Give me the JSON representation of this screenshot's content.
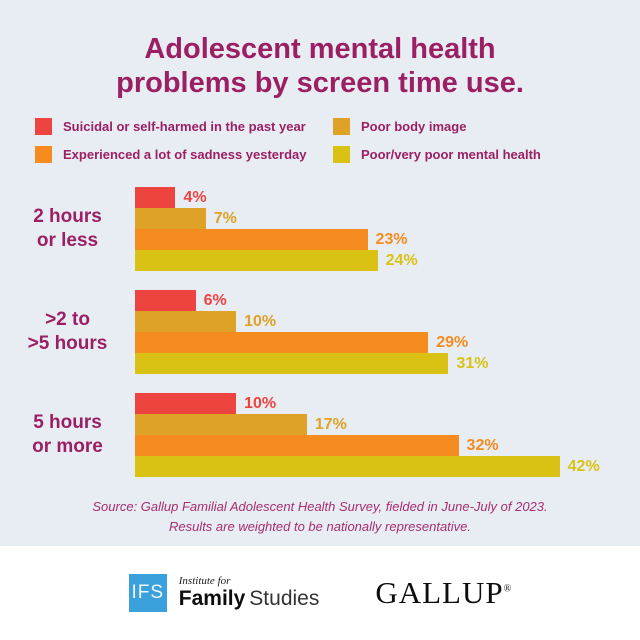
{
  "title": {
    "line1": "Adolescent mental health",
    "line2": "problems by screen time use."
  },
  "colors": {
    "background": "#e8edf4",
    "footer_background": "#ffffff",
    "heading_text": "#9b1f63",
    "source_text": "#a72d70",
    "red": "#ee4440",
    "orange": "#f68b1f",
    "amber": "#dda226",
    "yellow": "#d9c214",
    "ifs_blue": "#3ba1dd"
  },
  "legend": [
    {
      "key": "suicidal",
      "label": "Suicidal or self-harmed in the past year",
      "color": "#ee4440"
    },
    {
      "key": "sadness",
      "label": "Experienced a lot of sadness yesterday",
      "color": "#f68b1f"
    },
    {
      "key": "poor-body-image",
      "label": "Poor body image",
      "color": "#dda226"
    },
    {
      "key": "poor-mental-health",
      "label": "Poor/very poor mental health",
      "color": "#d9c214"
    }
  ],
  "chart_data": {
    "type": "bar",
    "orientation": "horizontal",
    "value_unit": "%",
    "axis_max": 45,
    "grid": false,
    "legend_position": "top",
    "categories": [
      "2 hours or less",
      ">2 to >5 hours",
      "5 hours or more"
    ],
    "series": [
      {
        "name": "Suicidal or self-harmed in the past year",
        "color": "#ee4440",
        "values": [
          4,
          6,
          10
        ]
      },
      {
        "name": "Poor body image",
        "color": "#dda226",
        "values": [
          7,
          10,
          17
        ]
      },
      {
        "name": "Experienced a lot of sadness yesterday",
        "color": "#f68b1f",
        "values": [
          23,
          29,
          32
        ]
      },
      {
        "name": "Poor/very poor mental health",
        "color": "#d9c214",
        "values": [
          24,
          31,
          42
        ]
      }
    ],
    "groups": [
      {
        "label_lines": [
          "2 hours",
          "or less"
        ],
        "bars": [
          {
            "series": "suicidal",
            "color": "#ee4440",
            "value": 4,
            "label": "4%"
          },
          {
            "series": "poor-body-image",
            "color": "#dda226",
            "value": 7,
            "label": "7%"
          },
          {
            "series": "sadness",
            "color": "#f68b1f",
            "value": 23,
            "label": "23%"
          },
          {
            "series": "poor-mental-health",
            "color": "#d9c214",
            "value": 24,
            "label": "24%"
          }
        ]
      },
      {
        "label_lines": [
          ">2 to",
          ">5 hours"
        ],
        "bars": [
          {
            "series": "suicidal",
            "color": "#ee4440",
            "value": 6,
            "label": "6%"
          },
          {
            "series": "poor-body-image",
            "color": "#dda226",
            "value": 10,
            "label": "10%"
          },
          {
            "series": "sadness",
            "color": "#f68b1f",
            "value": 29,
            "label": "29%"
          },
          {
            "series": "poor-mental-health",
            "color": "#d9c214",
            "value": 31,
            "label": "31%"
          }
        ]
      },
      {
        "label_lines": [
          "5 hours",
          "or more"
        ],
        "bars": [
          {
            "series": "suicidal",
            "color": "#ee4440",
            "value": 10,
            "label": "10%"
          },
          {
            "series": "poor-body-image",
            "color": "#dda226",
            "value": 17,
            "label": "17%"
          },
          {
            "series": "sadness",
            "color": "#f68b1f",
            "value": 32,
            "label": "32%"
          },
          {
            "series": "poor-mental-health",
            "color": "#d9c214",
            "value": 42,
            "label": "42%"
          }
        ]
      }
    ]
  },
  "source": {
    "line1": "Source: Gallup Familial Adolescent Health Survey, fielded in June-July of 2023.",
    "line2": "Results are weighted to be nationally representative."
  },
  "footer": {
    "ifs_mark": "IFS",
    "ifs_institute": "Institute for",
    "ifs_family": "Family",
    "ifs_studies": "Studies",
    "gallup": "GALLUP",
    "gallup_reg": "®"
  }
}
